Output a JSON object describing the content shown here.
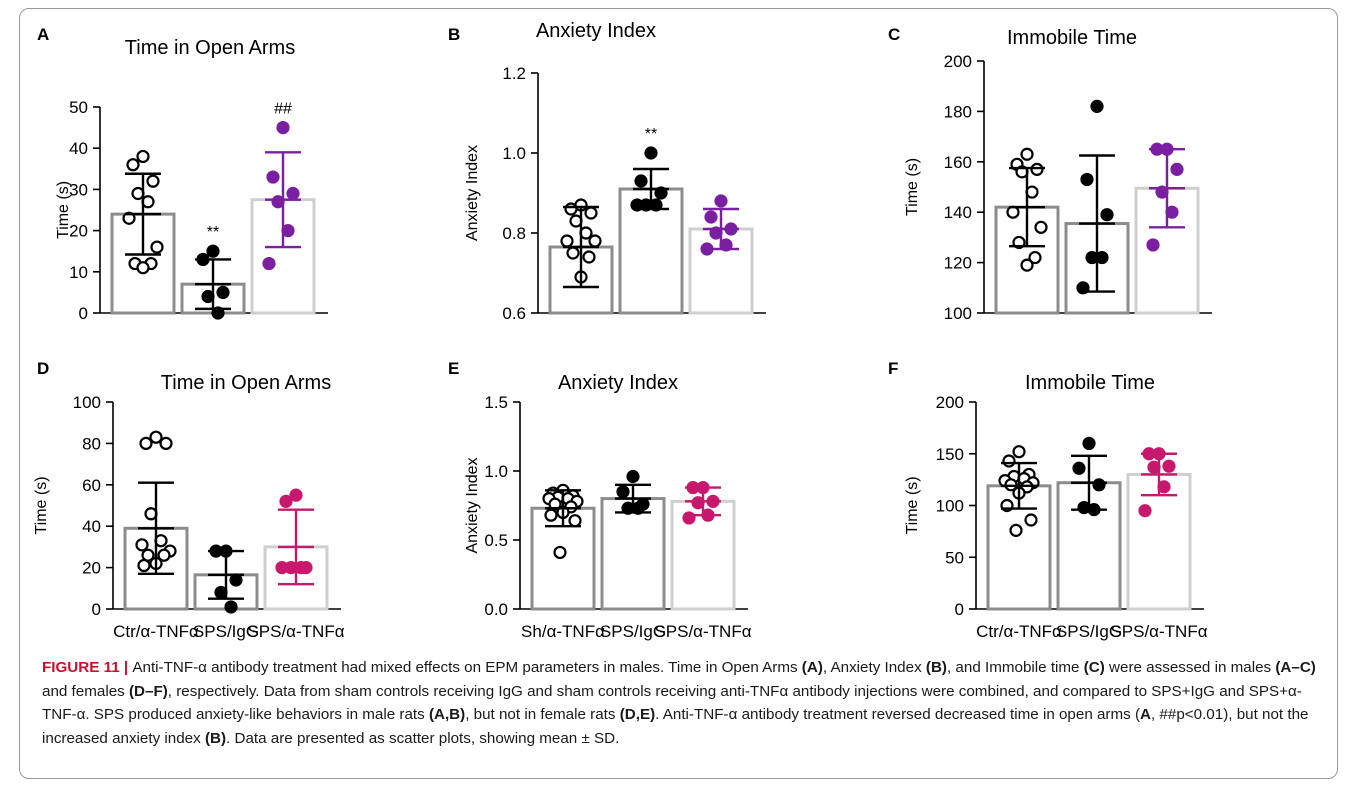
{
  "figure": {
    "label": "FIGURE 11",
    "caption_parts": [
      {
        "t": "Anti-TNF-α antibody treatment had mixed effects on EPM parameters in males. Time in Open Arms "
      },
      {
        "b": "(A)"
      },
      {
        "t": ", Anxiety Index "
      },
      {
        "b": "(B)"
      },
      {
        "t": ", and Immobile time "
      },
      {
        "b": "(C)"
      },
      {
        "t": " were assessed in males "
      },
      {
        "b": "(A–C)"
      },
      {
        "t": " and females "
      },
      {
        "b": "(D–F)"
      },
      {
        "t": ", respectively. Data from sham controls receiving IgG and sham controls receiving anti-TNFα antibody injections were combined, and compared to SPS+IgG and SPS+α-TNF-α. SPS produced anxiety-like behaviors in male rats "
      },
      {
        "b": "(A,B)"
      },
      {
        "t": ", but not in female rats "
      },
      {
        "b": "(D,E)"
      },
      {
        "t": ". Anti-TNF-α antibody treatment reversed decreased time in open arms ("
      },
      {
        "b": "A"
      },
      {
        "t": ", ##p<0.01), but not the increased anxiety index "
      },
      {
        "b": "(B)"
      },
      {
        "t": ". Data are presented as scatter plots, showing mean ± SD."
      }
    ]
  },
  "colors": {
    "black": "#000000",
    "gray_dark": "#8c8c8c",
    "gray_light": "#cfcfcf",
    "purple": "#7a1fa2",
    "magenta": "#c8186e"
  },
  "chart_data": [
    {
      "panel": "A",
      "type": "bar-scatter",
      "title": "Time in Open Arms",
      "ylabel": "Time (s)",
      "ylim": [
        0,
        50
      ],
      "yticks": [
        0,
        10,
        20,
        30,
        40,
        50
      ],
      "categories": [
        "",
        "",
        ""
      ],
      "groups": [
        {
          "mean": 24,
          "sd": 9.8,
          "bar_color": "#8c8c8c",
          "err_color": "#000000",
          "dot_color": "#000000",
          "dot_fill": "#ffffff",
          "points": [
            38,
            36,
            32,
            29,
            27,
            23,
            16,
            12,
            12,
            11
          ]
        },
        {
          "mean": 7,
          "sd": 6,
          "bar_color": "#8c8c8c",
          "err_color": "#000000",
          "dot_color": "#000000",
          "dot_fill": "#000000",
          "points": [
            15,
            13,
            5,
            4,
            0
          ],
          "annotation": "**"
        },
        {
          "mean": 27.5,
          "sd": 11.5,
          "bar_color": "#cfcfcf",
          "err_color": "#7a1fa2",
          "dot_color": "#7a1fa2",
          "dot_fill": "#7a1fa2",
          "points": [
            45,
            33,
            29,
            27,
            20,
            12
          ],
          "annotation": "##"
        }
      ]
    },
    {
      "panel": "B",
      "type": "bar-scatter",
      "title": "Anxiety Index",
      "ylabel": "Anxiety Index",
      "ylim": [
        0.6,
        1.2
      ],
      "yticks": [
        0.6,
        0.8,
        1.0,
        1.2
      ],
      "categories": [
        "",
        "",
        ""
      ],
      "groups": [
        {
          "mean": 0.765,
          "sd": 0.1,
          "bar_color": "#8c8c8c",
          "err_color": "#000000",
          "dot_color": "#000000",
          "dot_fill": "#ffffff",
          "points": [
            0.87,
            0.86,
            0.85,
            0.83,
            0.8,
            0.78,
            0.78,
            0.75,
            0.74,
            0.69
          ]
        },
        {
          "mean": 0.91,
          "sd": 0.05,
          "bar_color": "#8c8c8c",
          "err_color": "#000000",
          "dot_color": "#000000",
          "dot_fill": "#000000",
          "points": [
            1.0,
            0.93,
            0.9,
            0.87,
            0.87,
            0.87
          ],
          "annotation": "**"
        },
        {
          "mean": 0.81,
          "sd": 0.05,
          "bar_color": "#cfcfcf",
          "err_color": "#7a1fa2",
          "dot_color": "#7a1fa2",
          "dot_fill": "#7a1fa2",
          "points": [
            0.88,
            0.84,
            0.81,
            0.8,
            0.77,
            0.76
          ]
        }
      ]
    },
    {
      "panel": "C",
      "type": "bar-scatter",
      "title": "Immobile Time",
      "ylabel": "Time (s)",
      "ylim": [
        100,
        200
      ],
      "yticks": [
        100,
        120,
        140,
        160,
        180,
        200
      ],
      "categories": [
        "",
        "",
        ""
      ],
      "groups": [
        {
          "mean": 142,
          "sd": 15.5,
          "bar_color": "#8c8c8c",
          "err_color": "#000000",
          "dot_color": "#000000",
          "dot_fill": "#ffffff",
          "points": [
            163,
            159,
            157,
            156,
            148,
            140,
            134,
            128,
            122,
            119
          ]
        },
        {
          "mean": 135.5,
          "sd": 27,
          "bar_color": "#8c8c8c",
          "err_color": "#000000",
          "dot_color": "#000000",
          "dot_fill": "#000000",
          "points": [
            182,
            153,
            139,
            122,
            122,
            110
          ]
        },
        {
          "mean": 149.5,
          "sd": 15.5,
          "bar_color": "#cfcfcf",
          "err_color": "#7a1fa2",
          "dot_color": "#7a1fa2",
          "dot_fill": "#7a1fa2",
          "points": [
            165,
            165,
            157,
            148,
            140,
            127
          ]
        }
      ]
    },
    {
      "panel": "D",
      "type": "bar-scatter",
      "title": "Time in Open Arms",
      "ylabel": "Time (s)",
      "ylim": [
        0,
        100
      ],
      "yticks": [
        0,
        20,
        40,
        60,
        80,
        100
      ],
      "categories": [
        "Ctr/α-TNFα",
        "SPS/IgG",
        "SPS/α-TNFα"
      ],
      "groups": [
        {
          "mean": 39,
          "sd": 22,
          "bar_color": "#8c8c8c",
          "err_color": "#000000",
          "dot_color": "#000000",
          "dot_fill": "#ffffff",
          "points": [
            83,
            80,
            80,
            46,
            33,
            31,
            28,
            26,
            26,
            22,
            21
          ]
        },
        {
          "mean": 16.5,
          "sd": 11.5,
          "bar_color": "#8c8c8c",
          "err_color": "#000000",
          "dot_color": "#000000",
          "dot_fill": "#000000",
          "points": [
            28,
            28,
            14,
            8,
            1
          ]
        },
        {
          "mean": 30,
          "sd": 18,
          "bar_color": "#cfcfcf",
          "err_color": "#c8186e",
          "dot_color": "#c8186e",
          "dot_fill": "#c8186e",
          "points": [
            55,
            52,
            20,
            20,
            20,
            20
          ]
        }
      ]
    },
    {
      "panel": "E",
      "type": "bar-scatter",
      "title": "Anxiety Index",
      "ylabel": "Anxiety Index",
      "ylim": [
        0,
        1.5
      ],
      "yticks": [
        0.0,
        0.5,
        1.0,
        1.5
      ],
      "categories": [
        "Sh/α-TNFα",
        "SPS/IgG",
        "SPS/α-TNFα"
      ],
      "groups": [
        {
          "mean": 0.73,
          "sd": 0.13,
          "bar_color": "#8c8c8c",
          "err_color": "#000000",
          "dot_color": "#000000",
          "dot_fill": "#ffffff",
          "points": [
            0.86,
            0.84,
            0.82,
            0.81,
            0.8,
            0.8,
            0.78,
            0.76,
            0.74,
            0.7,
            0.68,
            0.64,
            0.41
          ]
        },
        {
          "mean": 0.8,
          "sd": 0.1,
          "bar_color": "#8c8c8c",
          "err_color": "#000000",
          "dot_color": "#000000",
          "dot_fill": "#000000",
          "points": [
            0.96,
            0.85,
            0.76,
            0.73,
            0.73
          ]
        },
        {
          "mean": 0.78,
          "sd": 0.1,
          "bar_color": "#cfcfcf",
          "err_color": "#c8186e",
          "dot_color": "#c8186e",
          "dot_fill": "#c8186e",
          "points": [
            0.88,
            0.88,
            0.78,
            0.77,
            0.68,
            0.66
          ]
        }
      ]
    },
    {
      "panel": "F",
      "type": "bar-scatter",
      "title": "Immobile Time",
      "ylabel": "Time (s)",
      "ylim": [
        0,
        200
      ],
      "yticks": [
        0,
        50,
        100,
        150,
        200
      ],
      "categories": [
        "Ctr/α-TNFα",
        "SPS/IgG",
        "SPS/α-TNFα"
      ],
      "groups": [
        {
          "mean": 119,
          "sd": 22,
          "bar_color": "#8c8c8c",
          "err_color": "#000000",
          "dot_color": "#000000",
          "dot_fill": "#ffffff",
          "points": [
            152,
            143,
            130,
            128,
            126,
            124,
            122,
            120,
            118,
            112,
            100,
            86,
            76
          ]
        },
        {
          "mean": 122,
          "sd": 26,
          "bar_color": "#8c8c8c",
          "err_color": "#000000",
          "dot_color": "#000000",
          "dot_fill": "#000000",
          "points": [
            160,
            136,
            120,
            98,
            96
          ]
        },
        {
          "mean": 130,
          "sd": 20,
          "bar_color": "#cfcfcf",
          "err_color": "#c8186e",
          "dot_color": "#c8186e",
          "dot_fill": "#c8186e",
          "points": [
            150,
            150,
            138,
            137,
            118,
            95
          ]
        }
      ]
    }
  ]
}
